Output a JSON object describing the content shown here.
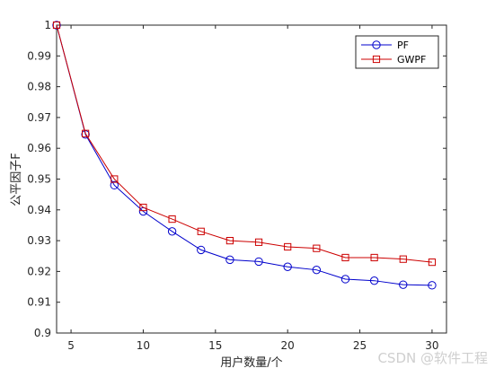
{
  "chart_data": {
    "type": "line",
    "title": "",
    "xlabel": "用户数量/个",
    "ylabel": "公平因子F",
    "xlim": [
      4,
      31
    ],
    "ylim": [
      0.9,
      1.0
    ],
    "xticks": [
      5,
      10,
      15,
      20,
      25,
      30
    ],
    "xtick_labels": [
      "5",
      "10",
      "15",
      "20",
      "25",
      "30"
    ],
    "yticks": [
      0.9,
      0.91,
      0.92,
      0.93,
      0.94,
      0.95,
      0.96,
      0.97,
      0.98,
      0.99,
      1.0
    ],
    "ytick_labels": [
      "0.9",
      "0.91",
      "0.92",
      "0.93",
      "0.94",
      "0.95",
      "0.96",
      "0.97",
      "0.98",
      "0.99",
      "1"
    ],
    "grid": false,
    "legend_position": "top-right",
    "x": [
      4,
      6,
      8,
      10,
      12,
      14,
      16,
      18,
      20,
      22,
      24,
      26,
      28,
      30
    ],
    "series": [
      {
        "name": "PF",
        "color": "#0000cc",
        "marker": "circle",
        "values": [
          1.0,
          0.9645,
          0.948,
          0.9395,
          0.933,
          0.927,
          0.9238,
          0.9232,
          0.9215,
          0.9205,
          0.9175,
          0.917,
          0.9157,
          0.9155
        ]
      },
      {
        "name": "GWPF",
        "color": "#cc0000",
        "marker": "square",
        "values": [
          1.0,
          0.9648,
          0.95,
          0.9408,
          0.937,
          0.933,
          0.93,
          0.9295,
          0.928,
          0.9275,
          0.9245,
          0.9245,
          0.924,
          0.923
        ]
      }
    ]
  },
  "watermark": "CSDN @软件工程"
}
